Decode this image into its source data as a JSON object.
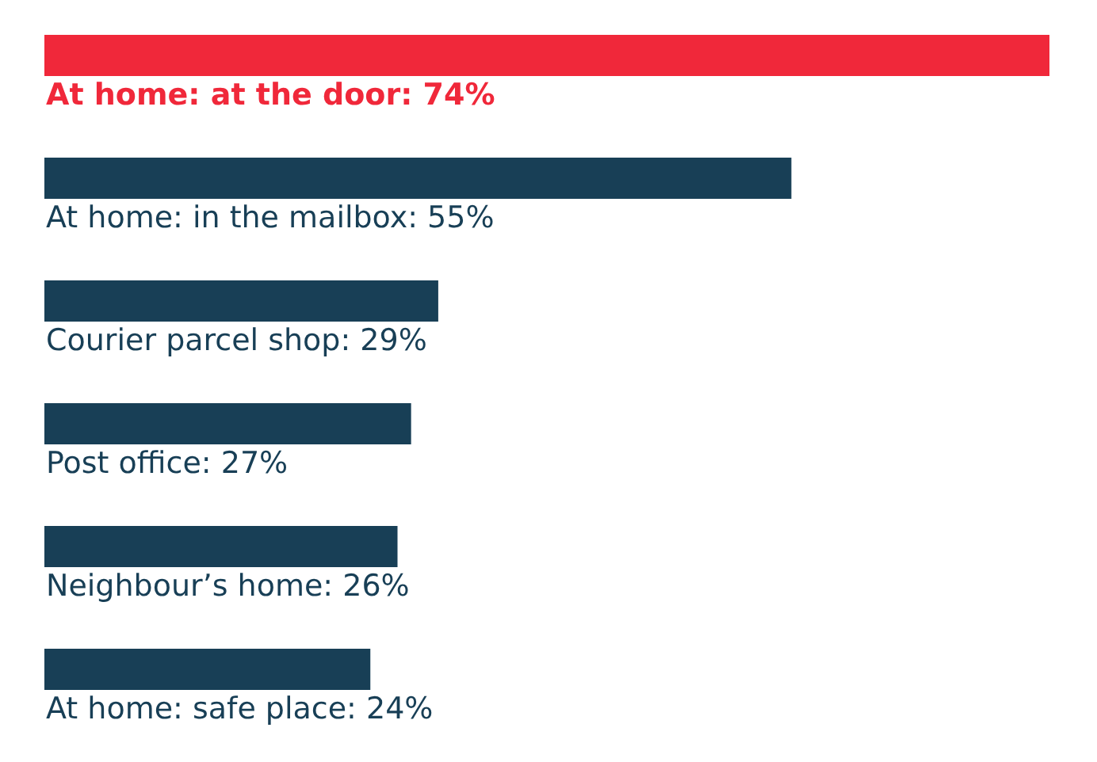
{
  "chart_data": {
    "type": "bar",
    "orientation": "horizontal",
    "categories": [
      null,
      null,
      null,
      null,
      null,
      null
    ],
    "values": [
      74,
      55,
      29,
      27,
      26,
      24
    ],
    "value_labels": [
      "At home: at the door: 74%",
      "At home: in the mailbox: 55%",
      "Courier parcel shop: 29%",
      "Post office: 27%",
      "Neighbour’s home: 26%",
      "At home: safe place: 24%"
    ],
    "colors": [
      "#f0283a",
      "#183f56",
      "#183f56",
      "#183f56",
      "#183f56",
      "#183f56"
    ]
  }
}
